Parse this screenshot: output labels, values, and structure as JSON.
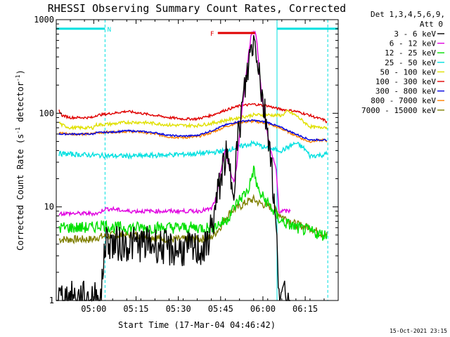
{
  "chart_data": {
    "type": "line",
    "title": "RHESSI Observing Summary Count Rates, Corrected",
    "xlabel": "Start Time (17-Mar-04 04:46:42)",
    "ylabel_main": "Corrected Count Rate (s",
    "ylabel_sup1": "-1",
    "ylabel_mid": " detector",
    "ylabel_sup2": "-1",
    "ylabel_end": ")",
    "yscale": "log",
    "ylim": [
      1,
      1000
    ],
    "xlim": [
      0,
      100
    ],
    "xticks": [
      {
        "label": "05:00",
        "x": 13.3
      },
      {
        "label": "05:15",
        "x": 28.3
      },
      {
        "label": "05:30",
        "x": 43.3
      },
      {
        "label": "05:45",
        "x": 58.3
      },
      {
        "label": "06:00",
        "x": 73.3
      },
      {
        "label": "06:15",
        "x": 88.3
      }
    ],
    "yticks": [
      {
        "label": "1",
        "v": 1
      },
      {
        "label": "10",
        "v": 10
      },
      {
        "label": "100",
        "v": 100
      },
      {
        "label": "1000",
        "v": 1000
      }
    ],
    "legend_header": [
      "Det 1,3,4,5,6,9,",
      "Att 0"
    ],
    "timestamp": "15-Oct-2021 23:15",
    "flags": [
      {
        "label": "N",
        "color": "#00e0e0",
        "x0": 0,
        "x1": 17.3,
        "level": 800
      },
      {
        "label": "F",
        "color": "#e00000",
        "x0": 57.3,
        "x1": 70.5,
        "level": 720
      },
      {
        "label": "",
        "color": "#00e0e0",
        "x0": 78.3,
        "x1": 100,
        "level": 800
      }
    ],
    "vlines": [
      {
        "x": 0,
        "color": "#00e0e0",
        "dash": false
      },
      {
        "x": 17.3,
        "color": "#00e0e0",
        "dash": true
      },
      {
        "x": 78.3,
        "color": "#00e0e0",
        "dash": false
      },
      {
        "x": 96.3,
        "color": "#00e0e0",
        "dash": true
      }
    ],
    "series": [
      {
        "name": "3 - 6 keV",
        "color": "#000000",
        "noise": 0.45,
        "x": [
          0,
          16,
          17,
          18,
          20,
          25,
          30,
          35,
          40,
          45,
          50,
          53,
          56,
          58,
          60,
          62,
          63,
          64,
          66,
          68,
          69,
          70,
          71,
          72,
          73,
          74,
          75,
          76,
          78,
          79,
          80,
          83
        ],
        "y": [
          1.05,
          1.05,
          3.5,
          4.5,
          4,
          4,
          4,
          4,
          3.5,
          3.5,
          3.5,
          3.5,
          8,
          18,
          35,
          20,
          18,
          40,
          120,
          300,
          480,
          600,
          500,
          300,
          150,
          100,
          70,
          40,
          5,
          1.5,
          1.05,
          1.05
        ]
      },
      {
        "name": "6 - 12 keV",
        "color": "#e000e0",
        "noise": 0.05,
        "x": [
          1,
          5,
          10,
          15,
          16,
          17,
          20,
          25,
          30,
          35,
          40,
          45,
          50,
          55,
          57,
          58,
          60,
          62,
          63,
          64,
          66,
          68,
          69,
          70,
          71,
          72,
          73,
          74,
          75,
          76,
          78,
          79,
          83
        ],
        "y": [
          8.5,
          8.5,
          8.5,
          8.5,
          9,
          9.5,
          9.5,
          9,
          9,
          9,
          9,
          9,
          9,
          9.5,
          13,
          22,
          40,
          22,
          18,
          28,
          120,
          380,
          650,
          780,
          650,
          300,
          140,
          90,
          60,
          40,
          25,
          9,
          9
        ]
      },
      {
        "name": "12 - 25 keV",
        "color": "#00e000",
        "noise": 0.15,
        "x": [
          1,
          10,
          12,
          13,
          16,
          20,
          30,
          40,
          50,
          55,
          60,
          65,
          68,
          70,
          71,
          72,
          74,
          76,
          78,
          80,
          85,
          95,
          96
        ],
        "y": [
          6,
          6,
          6,
          6,
          6.5,
          6,
          6,
          6,
          6,
          6,
          7,
          12,
          15,
          25,
          18,
          14,
          12,
          10,
          8,
          7,
          6,
          5,
          5
        ]
      },
      {
        "name": "25 - 50 keV",
        "color": "#00e0e0",
        "noise": 0.06,
        "x": [
          1,
          10,
          20,
          30,
          40,
          50,
          55,
          60,
          65,
          70,
          75,
          80,
          85,
          88,
          90,
          95,
          96
        ],
        "y": [
          37,
          36,
          35,
          35,
          36,
          37,
          38,
          40,
          44,
          48,
          42,
          40,
          48,
          42,
          35,
          36,
          37
        ]
      },
      {
        "name": "50 - 100 keV",
        "color": "#e0e000",
        "noise": 0.04,
        "x": [
          1,
          2,
          5,
          10,
          13,
          14,
          20,
          25,
          30,
          35,
          40,
          45,
          50,
          55,
          60,
          65,
          70,
          75,
          78,
          80,
          82,
          85,
          88,
          90,
          93,
          95,
          96
        ],
        "y": [
          80,
          75,
          70,
          70,
          70,
          75,
          77,
          80,
          80,
          78,
          75,
          74,
          74,
          78,
          84,
          90,
          96,
          96,
          95,
          95,
          105,
          95,
          80,
          72,
          70,
          72,
          70
        ]
      },
      {
        "name": "100 - 300 keV",
        "color": "#e00000",
        "noise": 0.03,
        "x": [
          1,
          2,
          5,
          10,
          13,
          14,
          20,
          25,
          30,
          35,
          40,
          45,
          50,
          55,
          60,
          65,
          70,
          75,
          78,
          80,
          85,
          90,
          92,
          95,
          96
        ],
        "y": [
          108,
          95,
          90,
          90,
          90,
          95,
          100,
          105,
          100,
          95,
          90,
          87,
          87,
          95,
          108,
          120,
          125,
          120,
          113,
          110,
          105,
          95,
          90,
          85,
          80
        ]
      },
      {
        "name": "300 - 800 keV",
        "color": "#0000e0",
        "noise": 0.02,
        "x": [
          1,
          5,
          10,
          13,
          14,
          20,
          25,
          30,
          35,
          40,
          45,
          50,
          55,
          60,
          65,
          70,
          75,
          80,
          85,
          90,
          95,
          96
        ],
        "y": [
          60,
          60,
          60,
          60,
          62,
          63,
          65,
          64,
          62,
          58,
          57,
          58,
          65,
          75,
          82,
          84,
          80,
          70,
          60,
          52,
          52,
          50
        ]
      },
      {
        "name": "800 - 7000 keV",
        "color": "#ff8000",
        "noise": 0.03,
        "x": [
          1,
          5,
          10,
          13,
          14,
          20,
          25,
          30,
          35,
          40,
          45,
          50,
          55,
          60,
          65,
          70,
          75,
          80,
          85,
          88,
          90,
          95,
          96
        ],
        "y": [
          62,
          60,
          60,
          60,
          62,
          63,
          64,
          63,
          60,
          56,
          55,
          56,
          62,
          72,
          80,
          82,
          78,
          68,
          58,
          52,
          50,
          52,
          50
        ]
      },
      {
        "name": "7000 - 15000 keV",
        "color": "#808000",
        "noise": 0.1,
        "x": [
          1,
          5,
          10,
          13,
          14,
          20,
          30,
          40,
          50,
          55,
          58,
          60,
          62,
          65,
          68,
          70,
          72,
          74,
          76,
          78,
          80,
          85,
          90,
          95,
          96
        ],
        "y": [
          4.5,
          4.5,
          4.5,
          4.5,
          4.7,
          5,
          5,
          4.5,
          4.5,
          4.7,
          6,
          7.5,
          9,
          10,
          11.5,
          12,
          11,
          10.5,
          10,
          9,
          8,
          6.5,
          6,
          5,
          5
        ]
      }
    ]
  }
}
